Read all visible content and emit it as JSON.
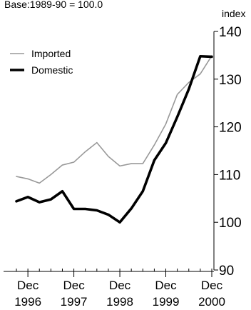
{
  "chart_data": {
    "type": "line",
    "title": "Base:1989-90 = 100.0",
    "ylabel": "index",
    "xlabel": "",
    "ylim": [
      90,
      140
    ],
    "yticks": [
      90,
      100,
      110,
      120,
      130,
      140
    ],
    "x_tick_labels": [
      {
        "month": "Dec",
        "year": "1996"
      },
      {
        "month": "Dec",
        "year": "1997"
      },
      {
        "month": "Dec",
        "year": "1998"
      },
      {
        "month": "Dec",
        "year": "1999"
      },
      {
        "month": "Dec",
        "year": "2000"
      }
    ],
    "x": [
      "Sep 1996",
      "Dec 1996",
      "Mar 1997",
      "Jun 1997",
      "Sep 1997",
      "Dec 1997",
      "Mar 1998",
      "Jun 1998",
      "Sep 1998",
      "Dec 1998",
      "Mar 1999",
      "Jun 1999",
      "Sep 1999",
      "Dec 1999",
      "Mar 2000",
      "Jun 2000",
      "Sep 2000",
      "Dec 2000"
    ],
    "series": [
      {
        "name": "Imported",
        "color": "#999999",
        "values": [
          109.6,
          109.1,
          108.2,
          110.0,
          112.0,
          112.6,
          114.8,
          116.7,
          113.8,
          111.8,
          112.3,
          112.3,
          116.2,
          120.6,
          126.8,
          129.3,
          131.1,
          134.9
        ]
      },
      {
        "name": "Domestic",
        "color": "#000000",
        "values": [
          104.4,
          105.3,
          104.2,
          104.8,
          106.5,
          102.8,
          102.8,
          102.5,
          101.6,
          100.0,
          102.9,
          106.5,
          113.0,
          116.6,
          122.1,
          127.9,
          134.8,
          134.7
        ]
      }
    ],
    "legend_position": "top-left",
    "grid": false
  }
}
